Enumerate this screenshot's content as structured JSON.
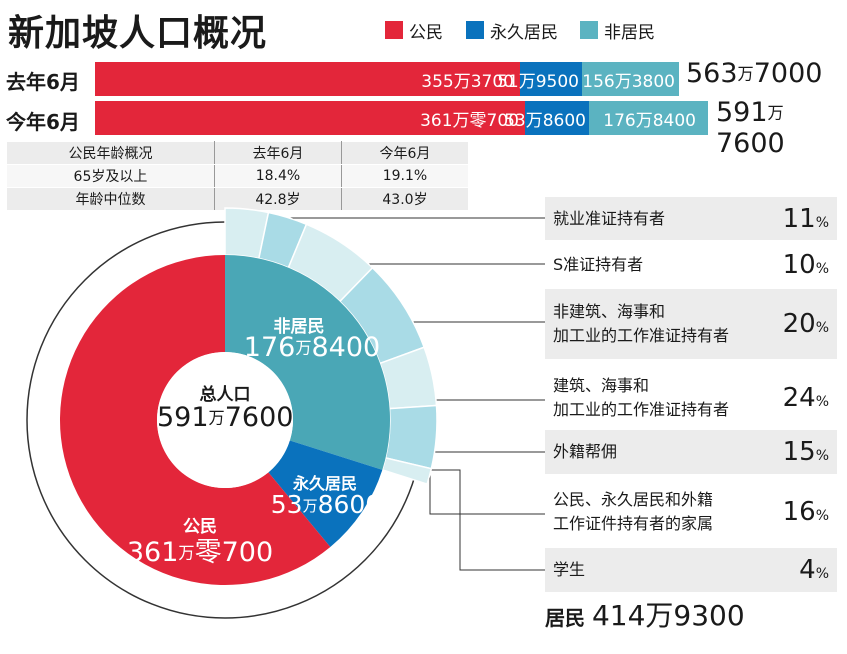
{
  "title": "新加坡人口概况",
  "legend": [
    {
      "label": "公民",
      "color": "#e3263a"
    },
    {
      "label": "永久居民",
      "color": "#0a72bd"
    },
    {
      "label": "非居民",
      "color": "#5bb3c1"
    }
  ],
  "bars": [
    {
      "label": "去年6月",
      "citizens": "355万3700",
      "pr": "51万9500",
      "nonres": "156万3800",
      "total_a": "563",
      "total_wan": "万",
      "total_b": "7000"
    },
    {
      "label": "今年6月",
      "citizens": "361万零700",
      "pr": "53万8600",
      "nonres": "176万8400",
      "total_a": "591",
      "total_wan": "万",
      "total_b": "7600"
    }
  ],
  "age_table": {
    "header": [
      "公民年龄概况",
      "去年6月",
      "今年6月"
    ],
    "rows": [
      [
        "65岁及以上",
        "18.4%",
        "19.1%"
      ],
      [
        "年龄中位数",
        "42.8岁",
        "43.0岁"
      ]
    ]
  },
  "donut": {
    "center_title": "总人口",
    "center_a": "591",
    "center_wan": "万",
    "center_b": "7600",
    "nonres_name": "非居民",
    "nonres_a": "176",
    "nonres_b": "8400",
    "pr_name": "永久居民",
    "pr_a": "53",
    "pr_b": "8600",
    "cit_name": "公民",
    "cit_a": "361",
    "cit_b": "零700",
    "wan": "万"
  },
  "categories": [
    {
      "label": "就业准证持有者",
      "pct": "11",
      "unit": "%"
    },
    {
      "label": "S准证持有者",
      "pct": "10",
      "unit": "%"
    },
    {
      "label": "非建筑、海事和\n加工业的工作准证持有者",
      "pct": "20",
      "unit": "%"
    },
    {
      "label": "建筑、海事和\n加工业的工作准证持有者",
      "pct": "24",
      "unit": "%"
    },
    {
      "label": "外籍帮佣",
      "pct": "15",
      "unit": "%"
    },
    {
      "label": "公民、永久居民和外籍\n工作证件持有者的家属",
      "pct": "16",
      "unit": "%"
    },
    {
      "label": "学生",
      "pct": "4",
      "unit": "%"
    }
  ],
  "resident": {
    "label": "居民",
    "value": "414万9300"
  },
  "chart_data": [
    {
      "type": "bar",
      "stacked": true,
      "categories": [
        "去年6月",
        "今年6月"
      ],
      "series": [
        {
          "name": "公民",
          "values": [
            3553700,
            3610700
          ],
          "color": "#e3263a"
        },
        {
          "name": "永久居民",
          "values": [
            519500,
            538600
          ],
          "color": "#0a72bd"
        },
        {
          "name": "非居民",
          "values": [
            1563800,
            1768400
          ],
          "color": "#5bb3c1"
        }
      ],
      "totals": [
        5637000,
        5917600
      ]
    },
    {
      "type": "pie",
      "title": "总人口",
      "slices": [
        {
          "name": "非居民",
          "value": 1768400,
          "color": "#4aa7b6"
        },
        {
          "name": "永久居民",
          "value": 538600,
          "color": "#0a72bd"
        },
        {
          "name": "公民",
          "value": 3610700,
          "color": "#e3263a"
        }
      ],
      "total": 5917600,
      "residents": 4149300
    },
    {
      "type": "pie",
      "subset_of": "非居民",
      "slices": [
        {
          "name": "就业准证持有者",
          "value": 11
        },
        {
          "name": "S准证持有者",
          "value": 10
        },
        {
          "name": "非建筑、海事和加工业的工作准证持有者",
          "value": 20
        },
        {
          "name": "建筑、海事和加工业的工作准证持有者",
          "value": 24
        },
        {
          "name": "外籍帮佣",
          "value": 15
        },
        {
          "name": "公民、永久居民和外籍工作证件持有者的家属",
          "value": 16
        },
        {
          "name": "学生",
          "value": 4
        }
      ],
      "unit": "%"
    }
  ]
}
